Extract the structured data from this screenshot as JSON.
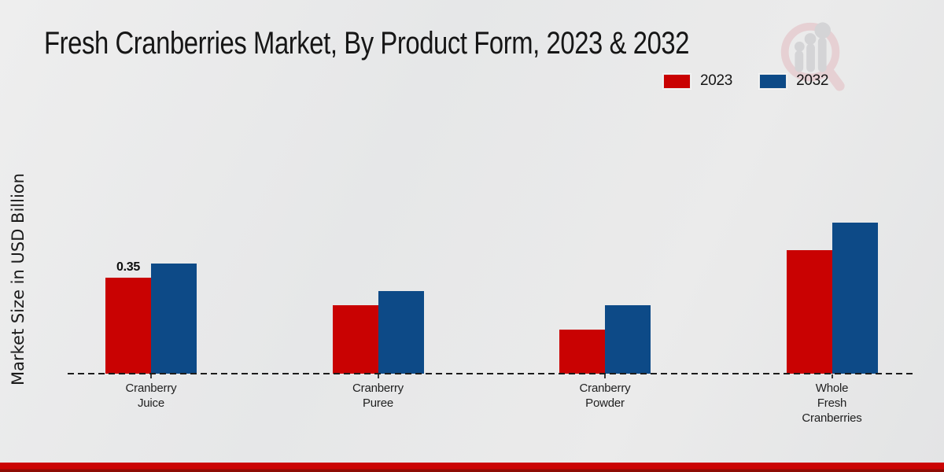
{
  "page": {
    "background_color": "#e8e9ea",
    "footer_bar_color": "#cb0404",
    "footer_bar_dark_color": "#8e0b04"
  },
  "icons": {
    "watermark": "magnifier-growth-bars-logo"
  },
  "chart_data": {
    "type": "bar",
    "title": "Fresh Cranberries Market, By Product Form, 2023 & 2032",
    "xlabel": "",
    "ylabel": "Market Size in USD Billion",
    "ylim": [
      0,
      0.6
    ],
    "grid": false,
    "legend_position": "top-right",
    "axis_line_style": "dashed",
    "categories": [
      [
        "Cranberry",
        "Juice"
      ],
      [
        "Cranberry",
        "Puree"
      ],
      [
        "Cranberry",
        "Powder"
      ],
      [
        "Whole",
        "Fresh",
        "Cranberries"
      ]
    ],
    "series": [
      {
        "name": "2023",
        "color": "#c90202",
        "values": [
          0.35,
          0.25,
          0.16,
          0.45
        ],
        "data_labels": [
          "0.35",
          "",
          "",
          ""
        ]
      },
      {
        "name": "2032",
        "color": "#0d4a87",
        "values": [
          0.4,
          0.3,
          0.25,
          0.55
        ],
        "data_labels": [
          "",
          "",
          "",
          ""
        ]
      }
    ]
  }
}
